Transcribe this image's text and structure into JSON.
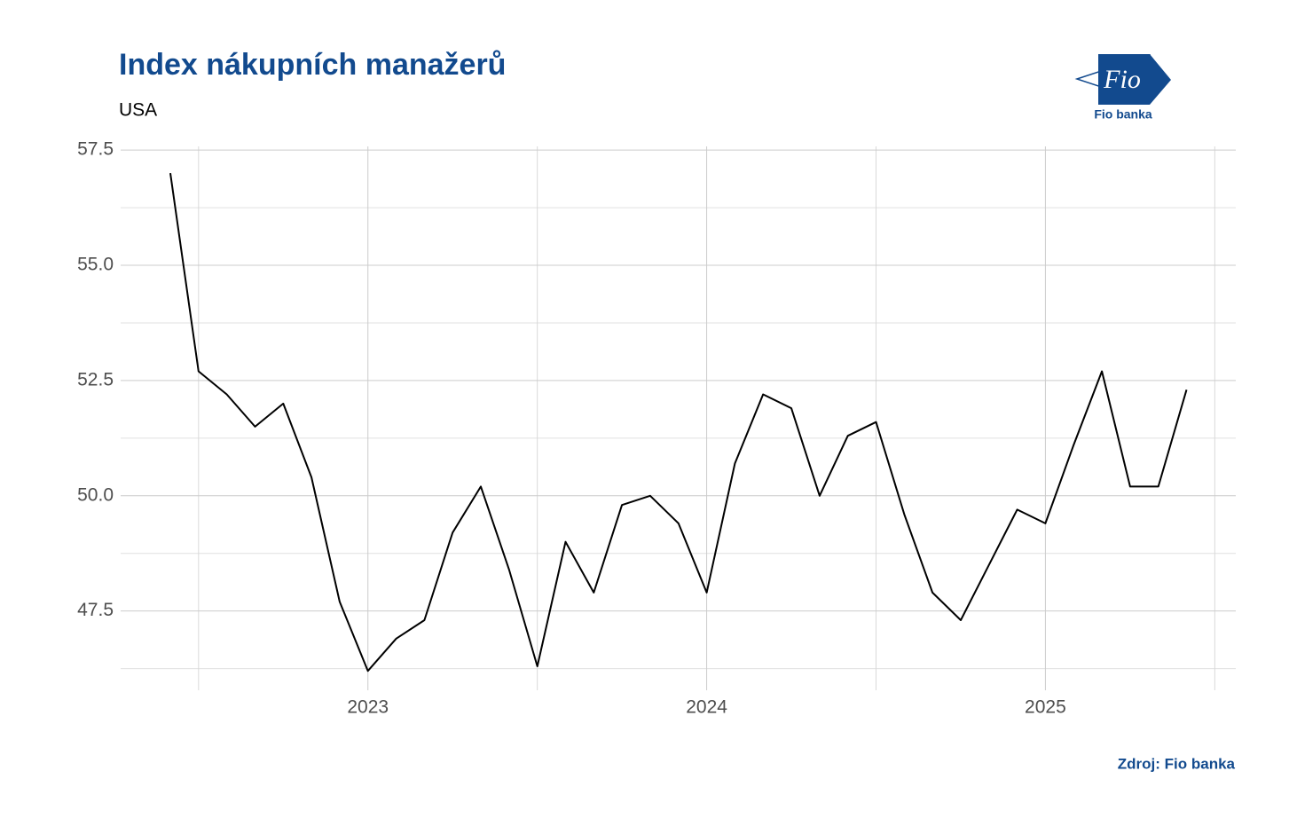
{
  "chart_data": {
    "type": "line",
    "title": "Index nákupních manažerů",
    "subtitle": "USA",
    "source": "Zdroj: Fio banka",
    "logo": {
      "mark": "Fio",
      "name": "Fio banka"
    },
    "categories": [
      null,
      null,
      null,
      null,
      null,
      null,
      null,
      "2023",
      null,
      null,
      null,
      null,
      null,
      null,
      null,
      null,
      null,
      null,
      null,
      "2024",
      null,
      null,
      null,
      null,
      null,
      null,
      null,
      null,
      null,
      null,
      null,
      "2025",
      null,
      null,
      null,
      null,
      null
    ],
    "series": [
      {
        "name": "USA",
        "color": "#000000",
        "values": [
          57.0,
          52.7,
          52.2,
          51.5,
          52.0,
          50.4,
          47.7,
          46.2,
          46.9,
          47.3,
          49.2,
          50.2,
          48.4,
          46.3,
          49.0,
          47.9,
          49.8,
          50.0,
          49.4,
          47.9,
          50.7,
          52.2,
          51.9,
          50.0,
          51.3,
          51.6,
          49.6,
          47.9,
          47.3,
          48.5,
          49.7,
          49.4,
          51.1,
          52.7,
          50.2,
          50.2,
          52.3
        ]
      }
    ],
    "ylim": [
      45.78,
      57.58
    ],
    "yticks": [
      47.5,
      {
        "value": 50,
        "label": "50.0"
      },
      52.5,
      {
        "value": 55,
        "label": "55.0"
      },
      57.5
    ],
    "yminor": [
      46.25,
      48.75,
      51.25,
      53.75,
      56.25
    ],
    "grid": true
  }
}
